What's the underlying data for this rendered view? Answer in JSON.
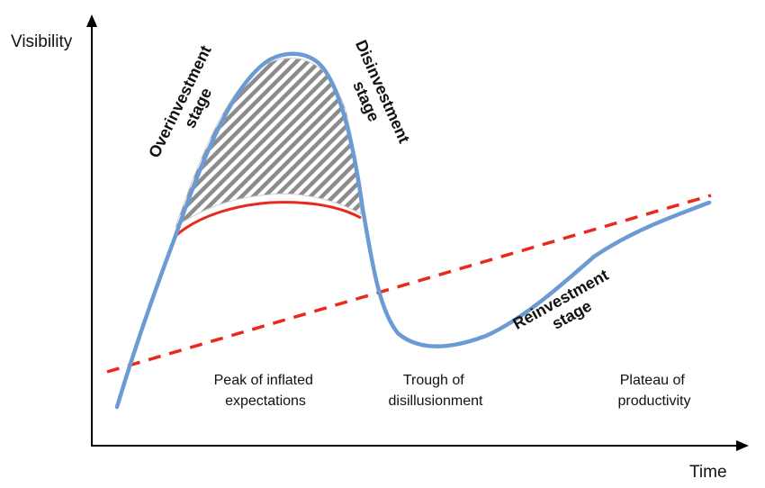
{
  "axes": {
    "y_label": "Visibility",
    "x_label": "Time"
  },
  "phases": {
    "peak": [
      "Peak of inflated",
      "expectations"
    ],
    "trough": [
      "Trough of",
      "disillusionment"
    ],
    "plateau": [
      "Plateau of",
      "productivity"
    ]
  },
  "stages": {
    "overinvestment": [
      "Overinvestment",
      "stage"
    ],
    "disinvestment": [
      "Disinvestment",
      "stage"
    ],
    "reinvestment": [
      "Reinvestment",
      "stage"
    ]
  },
  "colors": {
    "hype_curve": "#6b9bd2",
    "baseline_curve": "#e8291c",
    "trend_line": "#e8291c",
    "hatch": "#8c8c8c",
    "axis": "#000000"
  }
}
